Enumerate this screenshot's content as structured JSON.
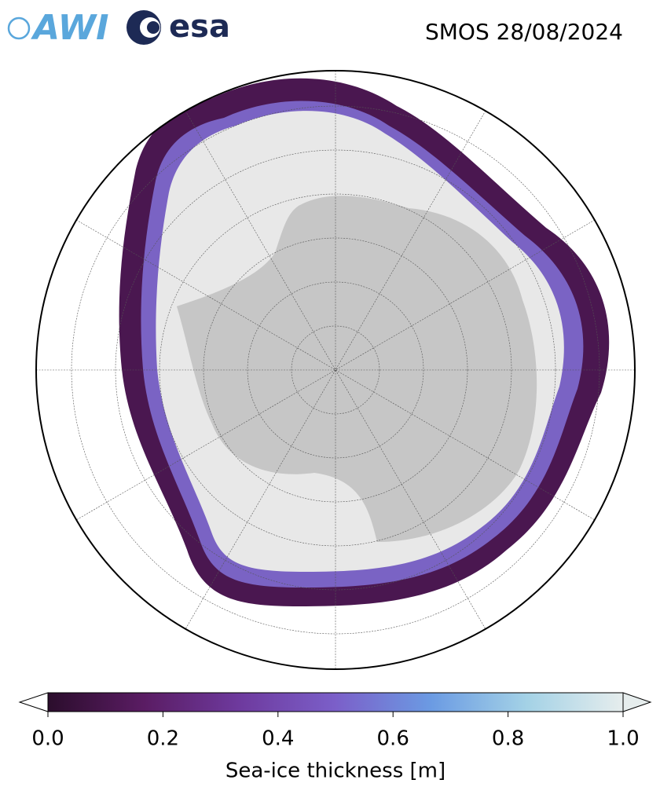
{
  "logos": [
    "AWI",
    "esa"
  ],
  "title": "SMOS 28/08/2024",
  "colorbar": {
    "label": "Sea-ice thickness [m]",
    "lim": [
      0,
      1
    ],
    "ticks": [
      {
        "value": 0,
        "label": "0.0"
      },
      {
        "value": 0.2,
        "label": "0.2"
      },
      {
        "value": 0.4,
        "label": "0.4"
      },
      {
        "value": 0.6,
        "label": "0.6"
      },
      {
        "value": 0.8,
        "label": "0.8"
      },
      {
        "value": 1,
        "label": "1.0"
      }
    ],
    "colors": [
      "#2b0d2c",
      "#5a1c63",
      "#6e3a9e",
      "#7b5fc9",
      "#6b9be3",
      "#a4d2e6",
      "#e6eded"
    ]
  }
}
